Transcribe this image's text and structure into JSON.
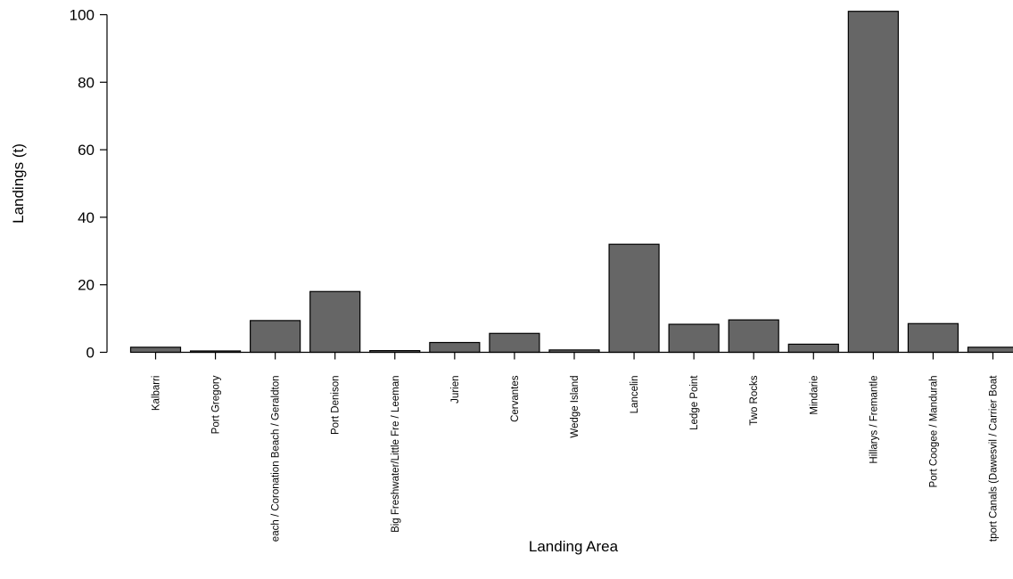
{
  "chart_data": {
    "type": "bar",
    "title": "",
    "xlabel": "Landing Area",
    "ylabel": "Landings (t)",
    "ylim": [
      0,
      100
    ],
    "yticks": [
      0,
      20,
      40,
      60,
      80,
      100
    ],
    "grid": false,
    "bar_color": "#666666",
    "categories": [
      "Kalbarri",
      "Port Gregory",
      "each / Coronation Beach / Geraldton",
      "Port Denison",
      "Big Freshwater/Little Fre / Leeman",
      "Jurien",
      "Cervantes",
      "Wedge Island",
      "Lancelin",
      "Ledge Point",
      "Two Rocks",
      "Mindarie",
      "Hillarys  / Fremantle",
      "Port Coogee  / Mandurah",
      "tport Canals (Dawesvil / Carrier Boat"
    ],
    "values": [
      1.5,
      0.4,
      9.4,
      18.0,
      0.5,
      2.9,
      5.6,
      0.7,
      32.0,
      8.3,
      9.6,
      2.4,
      101.0,
      8.5,
      1.5
    ]
  }
}
